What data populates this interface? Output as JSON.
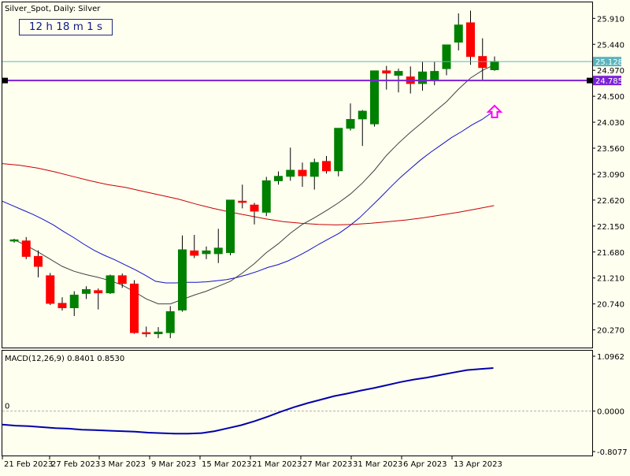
{
  "window": {
    "symbol_title": "Silver_Spot, Daily:  Silver",
    "countdown": "12 h 18 m 1 s"
  },
  "colors": {
    "background": "#fffff0",
    "bull": "#008000",
    "bear": "#ff0000",
    "ma_fast": "#404040",
    "ma_mid": "#1010c8",
    "ma_slow": "#c80000",
    "horizontal_line": "#7b22d6",
    "bid_line": "#5ab4bd",
    "arrow": "#ff00ff",
    "macd": "#0000aa"
  },
  "chart_data": [
    {
      "type": "candlestick",
      "title": "Silver_Spot, Daily:  Silver",
      "ylim": [
        19.95,
        26.2
      ],
      "grid": false,
      "y_ticks": [
        "25.910",
        "25.440",
        "24.970",
        "24.500",
        "24.030",
        "23.560",
        "23.090",
        "22.620",
        "22.150",
        "21.680",
        "21.210",
        "20.740",
        "20.270"
      ],
      "x_ticks": [
        "21 Feb 2023",
        "27 Feb 2023",
        "3 Mar 2023",
        "9 Mar 2023",
        "15 Mar 2023",
        "21 Mar 2023",
        "27 Mar 2023",
        "31 Mar 2023",
        "6 Apr 2023",
        "13 Apr 2023"
      ],
      "candles": [
        {
          "o": 21.88,
          "h": 21.92,
          "l": 21.85,
          "c": 21.9
        },
        {
          "o": 21.88,
          "h": 21.95,
          "l": 21.55,
          "c": 21.6
        },
        {
          "o": 21.6,
          "h": 21.71,
          "l": 21.22,
          "c": 21.42
        },
        {
          "o": 21.25,
          "h": 21.3,
          "l": 20.72,
          "c": 20.75
        },
        {
          "o": 20.75,
          "h": 20.86,
          "l": 20.62,
          "c": 20.67
        },
        {
          "o": 20.67,
          "h": 20.97,
          "l": 20.52,
          "c": 20.9
        },
        {
          "o": 20.93,
          "h": 21.06,
          "l": 20.83,
          "c": 21.0
        },
        {
          "o": 20.98,
          "h": 21.02,
          "l": 20.64,
          "c": 20.94
        },
        {
          "o": 20.94,
          "h": 21.27,
          "l": 20.92,
          "c": 21.25
        },
        {
          "o": 21.25,
          "h": 21.29,
          "l": 21.03,
          "c": 21.11
        },
        {
          "o": 21.1,
          "h": 21.17,
          "l": 20.2,
          "c": 20.22
        },
        {
          "o": 20.22,
          "h": 20.33,
          "l": 20.14,
          "c": 20.2
        },
        {
          "o": 20.2,
          "h": 20.32,
          "l": 20.12,
          "c": 20.23
        },
        {
          "o": 20.22,
          "h": 20.7,
          "l": 20.12,
          "c": 20.6
        },
        {
          "o": 20.63,
          "h": 21.98,
          "l": 20.6,
          "c": 21.72
        },
        {
          "o": 21.7,
          "h": 21.99,
          "l": 21.57,
          "c": 21.62
        },
        {
          "o": 21.65,
          "h": 21.78,
          "l": 21.55,
          "c": 21.7
        },
        {
          "o": 21.65,
          "h": 22.1,
          "l": 21.48,
          "c": 21.75
        },
        {
          "o": 21.67,
          "h": 22.62,
          "l": 21.62,
          "c": 22.62
        },
        {
          "o": 22.6,
          "h": 22.9,
          "l": 22.47,
          "c": 22.58
        },
        {
          "o": 22.53,
          "h": 22.57,
          "l": 22.18,
          "c": 22.42
        },
        {
          "o": 22.4,
          "h": 23.04,
          "l": 22.33,
          "c": 22.97
        },
        {
          "o": 22.97,
          "h": 23.14,
          "l": 22.9,
          "c": 23.05
        },
        {
          "o": 23.05,
          "h": 23.57,
          "l": 22.97,
          "c": 23.16
        },
        {
          "o": 23.16,
          "h": 23.3,
          "l": 22.86,
          "c": 23.06
        },
        {
          "o": 23.05,
          "h": 23.37,
          "l": 22.81,
          "c": 23.3
        },
        {
          "o": 23.32,
          "h": 23.42,
          "l": 23.1,
          "c": 23.15
        },
        {
          "o": 23.15,
          "h": 23.92,
          "l": 23.05,
          "c": 23.92
        },
        {
          "o": 23.92,
          "h": 24.37,
          "l": 23.88,
          "c": 24.08
        },
        {
          "o": 24.09,
          "h": 24.25,
          "l": 23.6,
          "c": 24.23
        },
        {
          "o": 24.0,
          "h": 24.96,
          "l": 23.95,
          "c": 24.96
        },
        {
          "o": 24.96,
          "h": 25.05,
          "l": 24.62,
          "c": 24.92
        },
        {
          "o": 24.88,
          "h": 25.0,
          "l": 24.57,
          "c": 24.95
        },
        {
          "o": 24.85,
          "h": 25.04,
          "l": 24.55,
          "c": 24.73
        },
        {
          "o": 24.73,
          "h": 25.12,
          "l": 24.6,
          "c": 24.94
        },
        {
          "o": 24.8,
          "h": 25.12,
          "l": 24.7,
          "c": 24.95
        },
        {
          "o": 25.0,
          "h": 25.43,
          "l": 24.88,
          "c": 25.43
        },
        {
          "o": 25.48,
          "h": 26.0,
          "l": 25.33,
          "c": 25.79
        },
        {
          "o": 25.83,
          "h": 26.05,
          "l": 25.07,
          "c": 25.22
        },
        {
          "o": 25.22,
          "h": 25.55,
          "l": 24.8,
          "c": 25.02
        },
        {
          "o": 24.98,
          "h": 25.22,
          "l": 24.96,
          "c": 25.13
        }
      ],
      "series": [
        {
          "values": [
            21.9,
            21.8,
            21.68,
            21.55,
            21.42,
            21.33,
            21.27,
            21.22,
            21.16,
            21.08,
            20.96,
            20.83,
            20.74,
            20.74,
            20.82,
            20.9,
            20.97,
            21.06,
            21.15,
            21.3,
            21.47,
            21.67,
            21.83,
            22.02,
            22.18,
            22.3,
            22.43,
            22.57,
            22.73,
            22.93,
            23.16,
            23.43,
            23.65,
            23.85,
            24.03,
            24.22,
            24.4,
            24.63,
            24.83,
            24.97,
            25.07
          ]
        },
        {
          "values": [
            22.6,
            22.52,
            22.44,
            22.36,
            22.27,
            22.17,
            22.05,
            21.94,
            21.82,
            21.71,
            21.62,
            21.54,
            21.45,
            21.36,
            21.26,
            21.15,
            21.12,
            21.12,
            21.13,
            21.13,
            21.14,
            21.16,
            21.18,
            21.22,
            21.27,
            21.33,
            21.4,
            21.45,
            21.52,
            21.61,
            21.71,
            21.82,
            21.92,
            22.02,
            22.15,
            22.3,
            22.48,
            22.66,
            22.85,
            23.03,
            23.19,
            23.35,
            23.49,
            23.62,
            23.75,
            23.86,
            23.98,
            24.08,
            24.21
          ]
        },
        {
          "values": [
            23.28,
            23.25,
            23.2,
            23.13,
            23.05,
            22.97,
            22.9,
            22.85,
            22.78,
            22.71,
            22.64,
            22.55,
            22.47,
            22.4,
            22.34,
            22.28,
            22.23,
            22.2,
            22.18,
            22.17,
            22.18,
            22.2,
            22.23,
            22.26,
            22.3,
            22.35,
            22.4,
            22.46,
            22.52
          ]
        }
      ],
      "horizontal_level": "24.785",
      "current_bid": "25.128",
      "arrow_signal": "up"
    },
    {
      "type": "line",
      "title": "MACD(12,26,9) 0.8401 0.8530",
      "ylim": [
        -0.8077,
        1.0962
      ],
      "y_ticks": [
        "1.0962",
        "0.0000",
        "-0.8077"
      ],
      "zero_label": "0",
      "series": [
        {
          "values": [
            -0.27,
            -0.29,
            -0.3,
            -0.32,
            -0.34,
            -0.35,
            -0.37,
            -0.38,
            -0.39,
            -0.4,
            -0.41,
            -0.43,
            -0.44,
            -0.45,
            -0.45,
            -0.44,
            -0.4,
            -0.34,
            -0.28,
            -0.2,
            -0.11,
            -0.01,
            0.08,
            0.16,
            0.23,
            0.3,
            0.35,
            0.41,
            0.46,
            0.52,
            0.58,
            0.63,
            0.67,
            0.72,
            0.77,
            0.82,
            0.84,
            0.86
          ]
        }
      ]
    }
  ]
}
